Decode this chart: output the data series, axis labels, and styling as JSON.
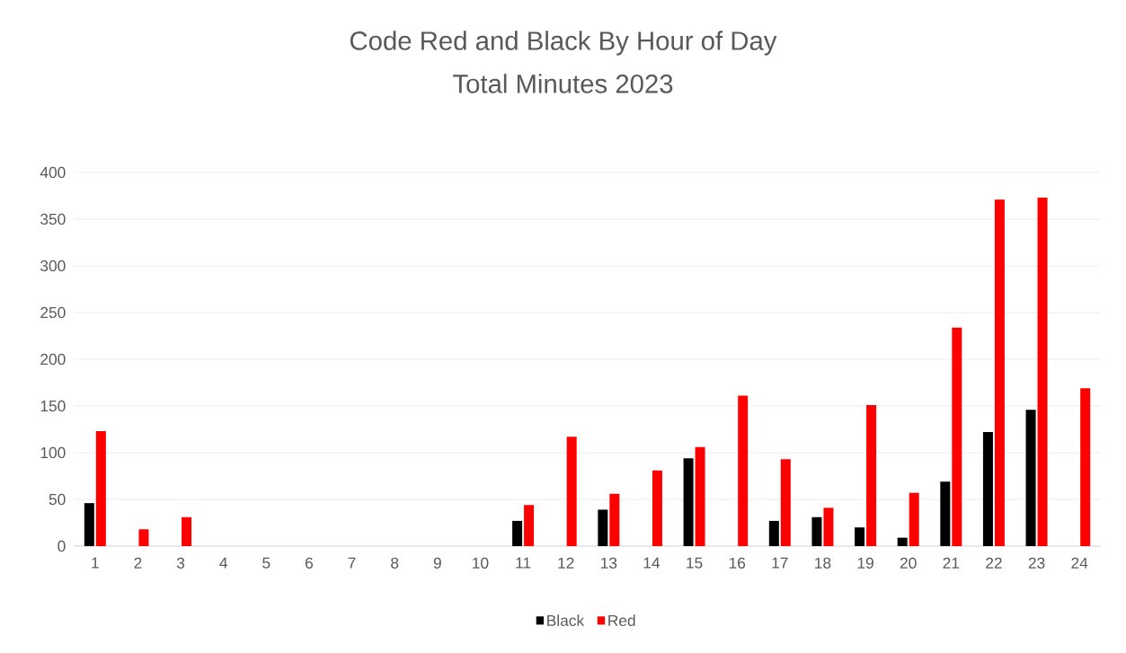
{
  "chart_data": {
    "type": "bar",
    "title": "Code Red and Black By Hour of Day",
    "subtitle": "Total Minutes 2023",
    "categories": [
      "1",
      "2",
      "3",
      "4",
      "5",
      "6",
      "7",
      "8",
      "9",
      "10",
      "11",
      "12",
      "13",
      "14",
      "15",
      "16",
      "17",
      "18",
      "19",
      "20",
      "21",
      "22",
      "23",
      "24"
    ],
    "series": [
      {
        "name": "Black",
        "color": "#000000",
        "values": [
          46,
          0,
          0,
          0,
          0,
          0,
          0,
          0,
          0,
          0,
          27,
          0,
          39,
          0,
          94,
          0,
          27,
          31,
          20,
          9,
          69,
          122,
          146,
          0
        ]
      },
      {
        "name": "Red",
        "color": "#ff0000",
        "values": [
          123,
          18,
          31,
          0,
          0,
          0,
          0,
          0,
          0,
          0,
          44,
          117,
          56,
          81,
          106,
          161,
          93,
          41,
          151,
          57,
          234,
          371,
          373,
          169
        ]
      }
    ],
    "ylim": [
      0,
      400
    ],
    "yticks": [
      0,
      50,
      100,
      150,
      200,
      250,
      300,
      350,
      400
    ],
    "grid": "y",
    "legend": "bottom"
  }
}
